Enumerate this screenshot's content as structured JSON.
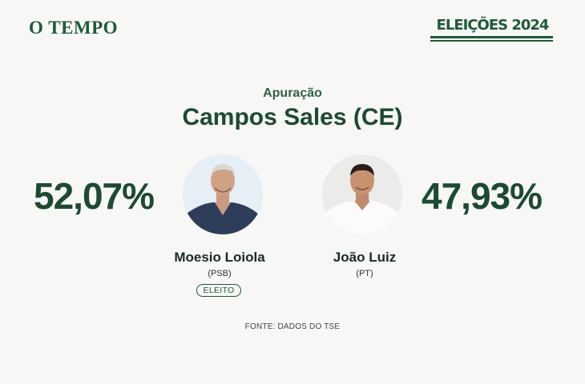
{
  "header": {
    "logo_text": "O TEMPO",
    "badge_text": "ELEIÇÕES 2024"
  },
  "result": {
    "subtitle": "Apuração",
    "title": "Campos Sales (CE)"
  },
  "candidates": [
    {
      "percent": "52,07%",
      "name": "Moesio Loiola",
      "party": "(PSB)",
      "status": "ELEITO"
    },
    {
      "percent": "47,93%",
      "name": "João Luiz",
      "party": "(PT)"
    }
  ],
  "footer": {
    "source": "FONTE: DADOS DO TSE"
  },
  "colors": {
    "brand_green": "#1e5a3a",
    "background": "#f7f7f5"
  }
}
